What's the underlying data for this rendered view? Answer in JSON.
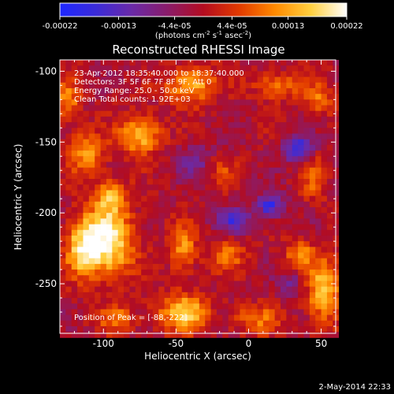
{
  "colorbar": {
    "tick_labels": [
      "-0.00022",
      "-0.00013",
      "-4.4e-05",
      "4.4e-05",
      "0.00013",
      "0.00022"
    ],
    "tick_values": [
      -0.00022,
      -0.00013,
      -4.4e-05,
      4.4e-05,
      0.00013,
      0.00022
    ],
    "range": [
      -0.00022,
      0.00022
    ],
    "units_text": "(photons cm",
    "units_exp1": "-2",
    "units_mid": " s",
    "units_exp2": "-1",
    "units_end": " asec",
    "units_exp3": "-2",
    "units_close": ")",
    "colors": [
      "#1e28ff",
      "#3b2bd8",
      "#6a2aa8",
      "#8a1c6a",
      "#b40c20",
      "#e23a00",
      "#ff8a00",
      "#ffd040",
      "#ffffff"
    ]
  },
  "chart_data": {
    "type": "heatmap",
    "title": "Reconstructed RHESSI Image",
    "xlabel": "Heliocentric X (arcsec)",
    "ylabel": "Heliocentric Y (arcsec)",
    "xlim": [
      -130,
      60
    ],
    "ylim": [
      -285,
      -92
    ],
    "xticks": [
      -100,
      -50,
      0,
      50
    ],
    "xtick_labels": [
      "-100",
      "-50",
      "0",
      "50"
    ],
    "yticks": [
      -100,
      -150,
      -200,
      -250
    ],
    "ytick_labels": [
      "-100",
      "-150",
      "-200",
      "-250"
    ],
    "annotations": [
      "23-Apr-2012 18:35:40.000 to 18:37:40.000",
      "Detectors: 3F 5F 6F 7F 8F 9F, Att 0",
      "Energy Range: 25.0 - 50.0 keV",
      "Clean     Total counts: 1.92E+03"
    ],
    "peak_label": "Position of Peak = [-88,-222]",
    "peak": [
      -88,
      -222
    ],
    "sources": [
      {
        "x": -97,
        "y": -220,
        "amp": 1.0,
        "sx": 12,
        "sy": 18
      },
      {
        "x": -115,
        "y": -225,
        "amp": 0.75,
        "sx": 8,
        "sy": 14
      },
      {
        "x": -75,
        "y": -145,
        "amp": 0.75,
        "sx": 10,
        "sy": 10
      },
      {
        "x": -112,
        "y": -158,
        "amp": 0.6,
        "sx": 9,
        "sy": 10
      },
      {
        "x": -40,
        "y": -110,
        "amp": 0.7,
        "sx": 12,
        "sy": 9
      },
      {
        "x": -125,
        "y": -120,
        "amp": 0.55,
        "sx": 6,
        "sy": 10
      },
      {
        "x": -95,
        "y": -188,
        "amp": 0.55,
        "sx": 8,
        "sy": 8
      },
      {
        "x": -45,
        "y": -270,
        "amp": 0.8,
        "sx": 12,
        "sy": 9
      },
      {
        "x": -90,
        "y": -275,
        "amp": 0.45,
        "sx": 9,
        "sy": 7
      },
      {
        "x": -45,
        "y": -225,
        "amp": 0.6,
        "sx": 6,
        "sy": 12
      },
      {
        "x": -15,
        "y": -230,
        "amp": 0.45,
        "sx": 9,
        "sy": 8
      },
      {
        "x": 52,
        "y": -255,
        "amp": 0.75,
        "sx": 8,
        "sy": 16
      },
      {
        "x": 35,
        "y": -230,
        "amp": 0.55,
        "sx": 7,
        "sy": 7
      },
      {
        "x": 20,
        "y": -110,
        "amp": 0.45,
        "sx": 12,
        "sy": 7
      },
      {
        "x": 48,
        "y": -120,
        "amp": 0.45,
        "sx": 8,
        "sy": 8
      },
      {
        "x": 5,
        "y": -275,
        "amp": 0.45,
        "sx": 12,
        "sy": 7
      },
      {
        "x": -20,
        "y": -170,
        "amp": 0.3,
        "sx": 8,
        "sy": 8
      },
      {
        "x": 45,
        "y": -175,
        "amp": 0.4,
        "sx": 6,
        "sy": 12
      },
      {
        "x": 35,
        "y": -155,
        "amp": -0.75,
        "sx": 7,
        "sy": 7
      },
      {
        "x": 15,
        "y": -195,
        "amp": -0.75,
        "sx": 6,
        "sy": 6
      },
      {
        "x": -10,
        "y": -205,
        "amp": -0.6,
        "sx": 8,
        "sy": 6
      },
      {
        "x": -35,
        "y": -165,
        "amp": -0.35,
        "sx": 9,
        "sy": 9
      },
      {
        "x": 30,
        "y": -250,
        "amp": -0.35,
        "sx": 6,
        "sy": 6
      }
    ]
  },
  "footer": {
    "date": "2-May-2014 22:33"
  }
}
